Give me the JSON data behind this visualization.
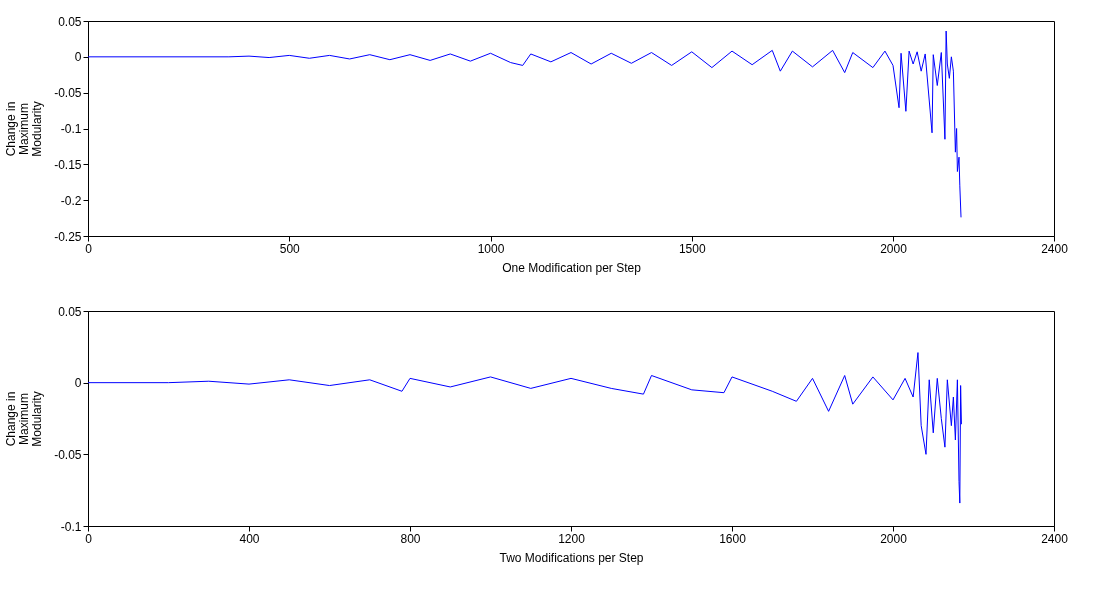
{
  "chart_data": [
    {
      "type": "line",
      "xlabel": "One Modification per Step",
      "ylabel": "Change in Maximum Modularity",
      "xlim": [
        0,
        2400
      ],
      "xticks": [
        0,
        500,
        1000,
        1500,
        2000,
        2400
      ],
      "ylim": [
        -0.25,
        0.05
      ],
      "yticks": [
        0.05,
        0,
        -0.05,
        -0.1,
        -0.15,
        -0.2,
        -0.25
      ],
      "grid": false,
      "line_style": "solid",
      "marker": "none",
      "series": [
        {
          "color": "#0000ff",
          "x": [
            0,
            350,
            400,
            450,
            500,
            550,
            600,
            650,
            700,
            750,
            800,
            850,
            900,
            950,
            1000,
            1050,
            1080,
            1100,
            1150,
            1200,
            1250,
            1300,
            1350,
            1400,
            1450,
            1500,
            1550,
            1600,
            1650,
            1700,
            1720,
            1750,
            1800,
            1850,
            1880,
            1900,
            1950,
            1980,
            2000,
            2015,
            2020,
            2032,
            2040,
            2050,
            2060,
            2070,
            2080,
            2097,
            2100,
            2110,
            2120,
            2129,
            2132,
            2135,
            2140,
            2145,
            2150,
            2155,
            2158,
            2160,
            2164,
            2166,
            2169
          ],
          "values": [
            0,
            0,
            0.001,
            -0.001,
            0.002,
            -0.002,
            0.002,
            -0.003,
            0.003,
            -0.004,
            0.003,
            -0.005,
            0.004,
            -0.006,
            0.005,
            -0.008,
            -0.012,
            0.004,
            -0.007,
            0.006,
            -0.01,
            0.005,
            -0.009,
            0.006,
            -0.012,
            0.007,
            -0.015,
            0.008,
            -0.011,
            0.009,
            -0.02,
            0.008,
            -0.014,
            0.009,
            -0.022,
            0.006,
            -0.015,
            0.008,
            -0.012,
            -0.071,
            0.005,
            -0.076,
            0.008,
            -0.01,
            0.007,
            -0.02,
            0.004,
            -0.106,
            0.003,
            -0.04,
            0.006,
            -0.115,
            0.036,
            -0.01,
            -0.03,
            0,
            -0.02,
            -0.133,
            -0.1,
            -0.16,
            -0.14,
            -0.18,
            -0.224
          ]
        }
      ]
    },
    {
      "type": "line",
      "xlabel": "Two Modifications per Step",
      "ylabel": "Change in Maximum Modularity",
      "xlim": [
        0,
        2400
      ],
      "xticks": [
        0,
        400,
        800,
        1200,
        1600,
        2000,
        2400
      ],
      "ylim": [
        -0.1,
        0.05
      ],
      "yticks": [
        0.05,
        0,
        -0.05,
        -0.1
      ],
      "grid": false,
      "line_style": "solid",
      "marker": "none",
      "series": [
        {
          "color": "#0000ff",
          "x": [
            0,
            200,
            300,
            400,
            500,
            600,
            700,
            780,
            800,
            900,
            1000,
            1100,
            1200,
            1300,
            1380,
            1400,
            1500,
            1580,
            1600,
            1700,
            1760,
            1800,
            1840,
            1880,
            1900,
            1950,
            2000,
            2030,
            2050,
            2062,
            2070,
            2082,
            2090,
            2100,
            2110,
            2120,
            2129,
            2135,
            2145,
            2150,
            2155,
            2160,
            2164,
            2166,
            2168,
            2170
          ],
          "values": [
            0,
            0,
            0.001,
            -0.001,
            0.002,
            -0.002,
            0.002,
            -0.006,
            0.003,
            -0.003,
            0.004,
            -0.004,
            0.003,
            -0.004,
            -0.008,
            0.005,
            -0.005,
            -0.007,
            0.004,
            -0.006,
            -0.013,
            0.003,
            -0.02,
            0.005,
            -0.015,
            0.004,
            -0.012,
            0.003,
            -0.01,
            0.021,
            -0.03,
            -0.05,
            0.002,
            -0.035,
            0.003,
            -0.025,
            -0.045,
            0.002,
            -0.03,
            -0.01,
            -0.04,
            0.002,
            -0.069,
            -0.084,
            -0.002,
            -0.029
          ]
        }
      ]
    }
  ]
}
